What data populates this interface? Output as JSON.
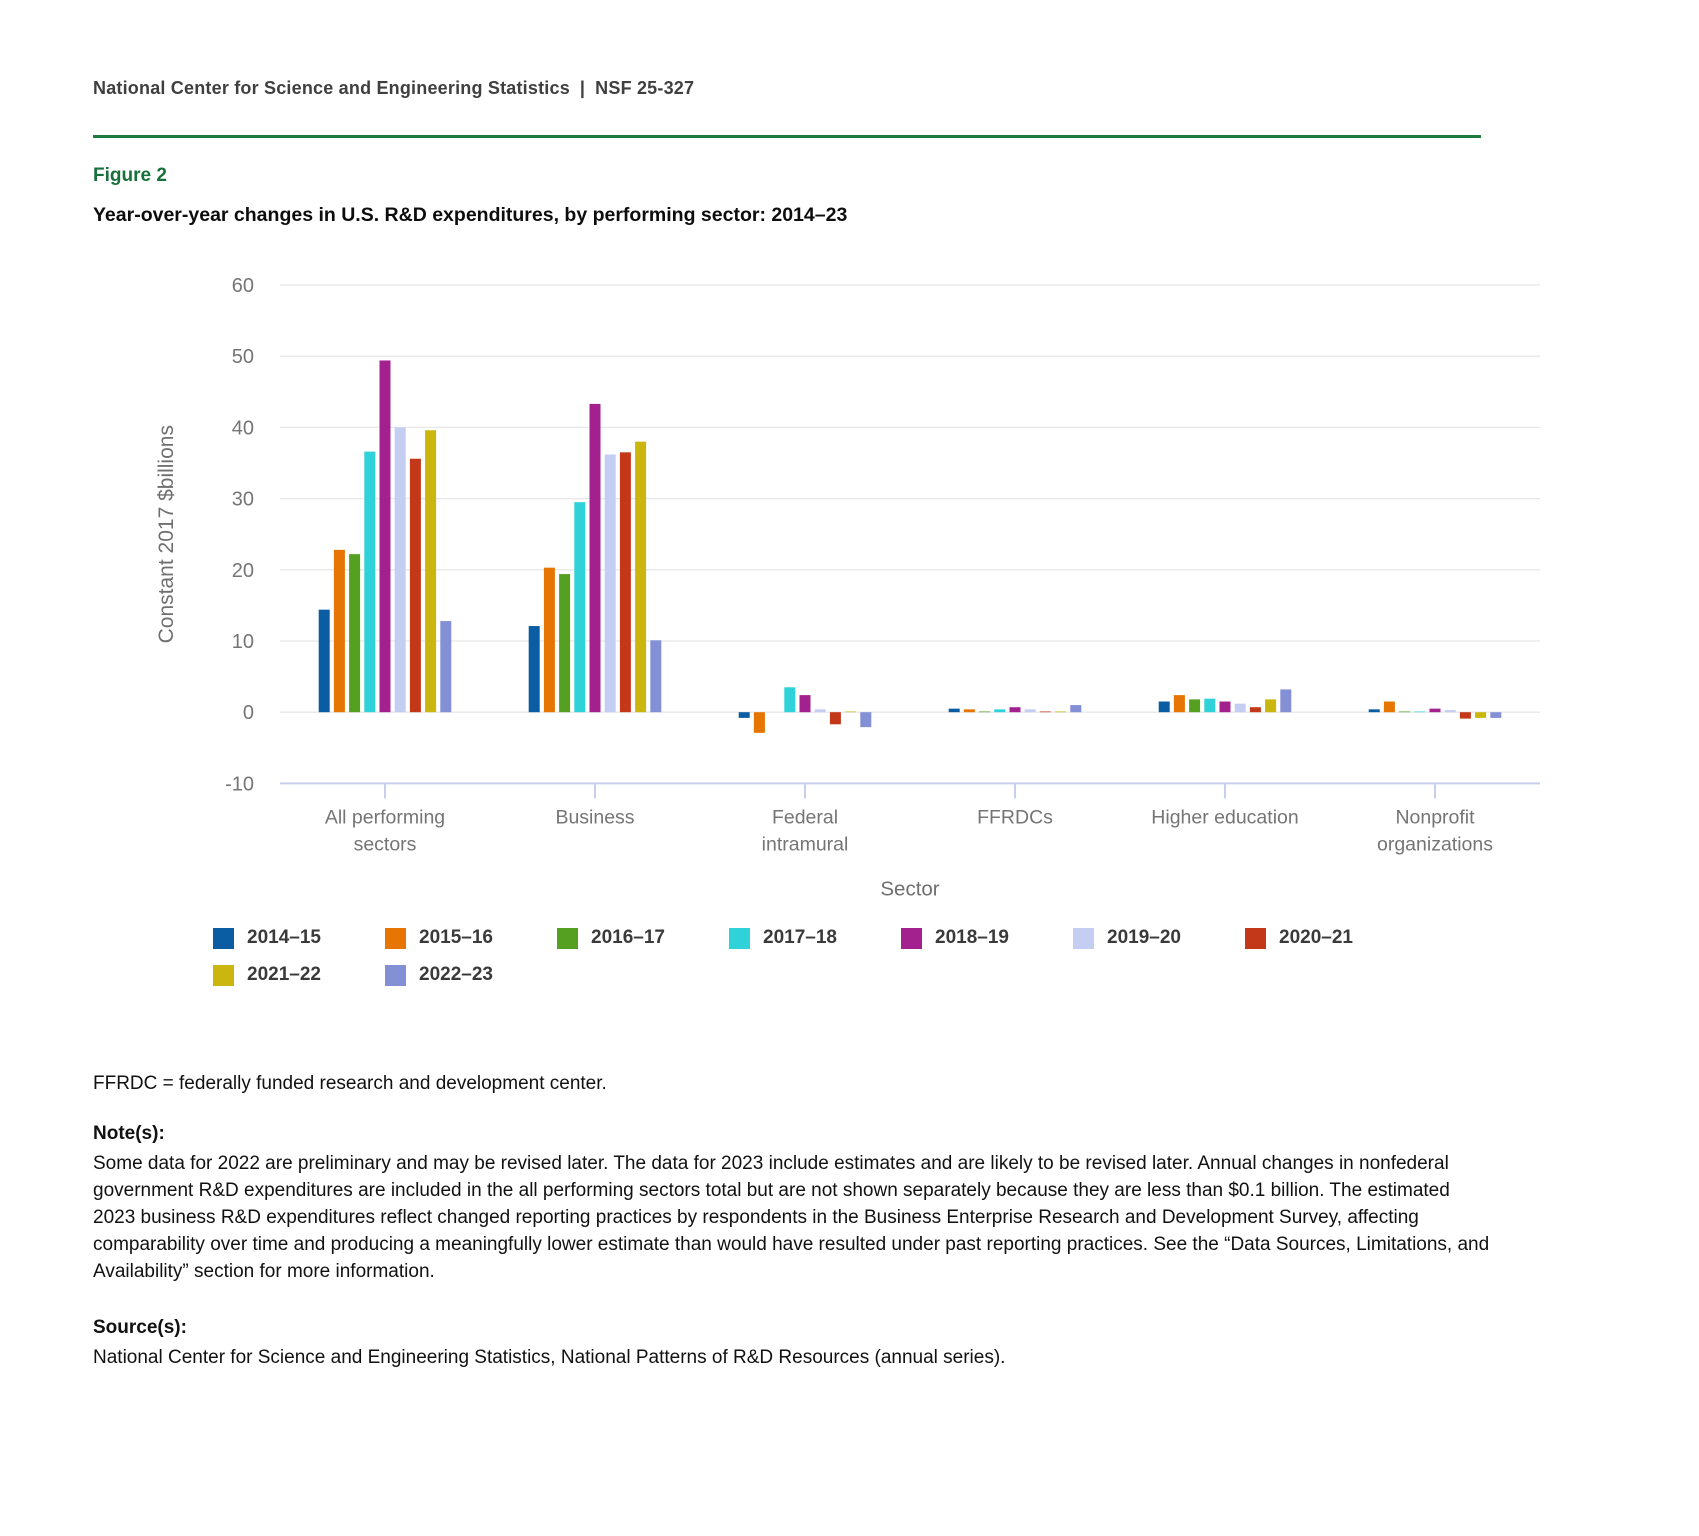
{
  "header": {
    "organization": "National Center for Science and Engineering Statistics",
    "separator": "|",
    "report_number": "NSF 25-327"
  },
  "figure": {
    "label": "Figure 2",
    "title": "Year-over-year changes in U.S. R&D expenditures, by performing sector: 2014–23"
  },
  "chart_data": {
    "type": "bar",
    "title": "Year-over-year changes in U.S. R&D expenditures, by performing sector: 2014–23",
    "xlabel": "Sector",
    "ylabel": "Constant 2017 $billions",
    "ylim": [
      -10,
      60
    ],
    "ytick_step": 10,
    "grid": true,
    "legend_position": "bottom",
    "categories": [
      "All performing\nsectors",
      "Business",
      "Federal\nintramural",
      "FFRDCs",
      "Higher education",
      "Nonprofit\norganizations"
    ],
    "series": [
      {
        "name": "2014–15",
        "color": "#0B5DA3",
        "values": [
          14.4,
          12.1,
          -0.8,
          0.5,
          1.5,
          0.4
        ]
      },
      {
        "name": "2015–16",
        "color": "#E67503",
        "values": [
          22.8,
          20.3,
          -2.9,
          0.4,
          2.4,
          1.5
        ]
      },
      {
        "name": "2016–17",
        "color": "#55A021",
        "values": [
          22.2,
          19.4,
          0,
          0.1,
          1.8,
          0.1
        ]
      },
      {
        "name": "2017–18",
        "color": "#30D2D9",
        "values": [
          36.6,
          29.5,
          3.5,
          0.4,
          1.9,
          0.1
        ]
      },
      {
        "name": "2018–19",
        "color": "#A3218E",
        "values": [
          49.4,
          43.3,
          2.4,
          0.7,
          1.5,
          0.5
        ]
      },
      {
        "name": "2019–20",
        "color": "#C4CDF2",
        "values": [
          40.0,
          36.2,
          0.4,
          0.4,
          1.2,
          0.3
        ]
      },
      {
        "name": "2020–21",
        "color": "#C23819",
        "values": [
          35.6,
          36.5,
          -1.7,
          0.1,
          0.7,
          -0.9
        ]
      },
      {
        "name": "2021–22",
        "color": "#CBB60F",
        "values": [
          39.6,
          38.0,
          0.1,
          0.1,
          1.8,
          -0.8
        ]
      },
      {
        "name": "2022–23",
        "color": "#8490D6",
        "values": [
          12.8,
          10.1,
          -2.1,
          1.0,
          3.2,
          -0.8
        ]
      }
    ]
  },
  "abbreviation_note": "FFRDC = federally funded research and development center.",
  "notes": {
    "heading": "Note(s):",
    "body": "Some data for 2022 are preliminary and may be revised later. The data for 2023 include estimates and are likely to be revised later. Annual changes in nonfederal government R&D expenditures are included in the all performing sectors total but are not shown separately because they are less than $0.1 billion. The estimated 2023 business R&D expenditures reflect changed reporting practices by respondents in the Business Enterprise Research and Development Survey, affecting comparability over time and producing a meaningfully lower estimate than would have resulted under past reporting practices. See the “Data Sources, Limitations, and Availability” section for more information."
  },
  "source": {
    "heading": "Source(s):",
    "body": "National Center for Science and Engineering Statistics, National Patterns of R&D Resources (annual series)."
  },
  "colors": {
    "rule_green": "#1E7B3E",
    "figure_label_green": "#16713B",
    "axis_text": "#757575",
    "axis_line": "#C6D0EC",
    "gridline": "#E8E8E8",
    "header_text": "#3F3F3F"
  }
}
